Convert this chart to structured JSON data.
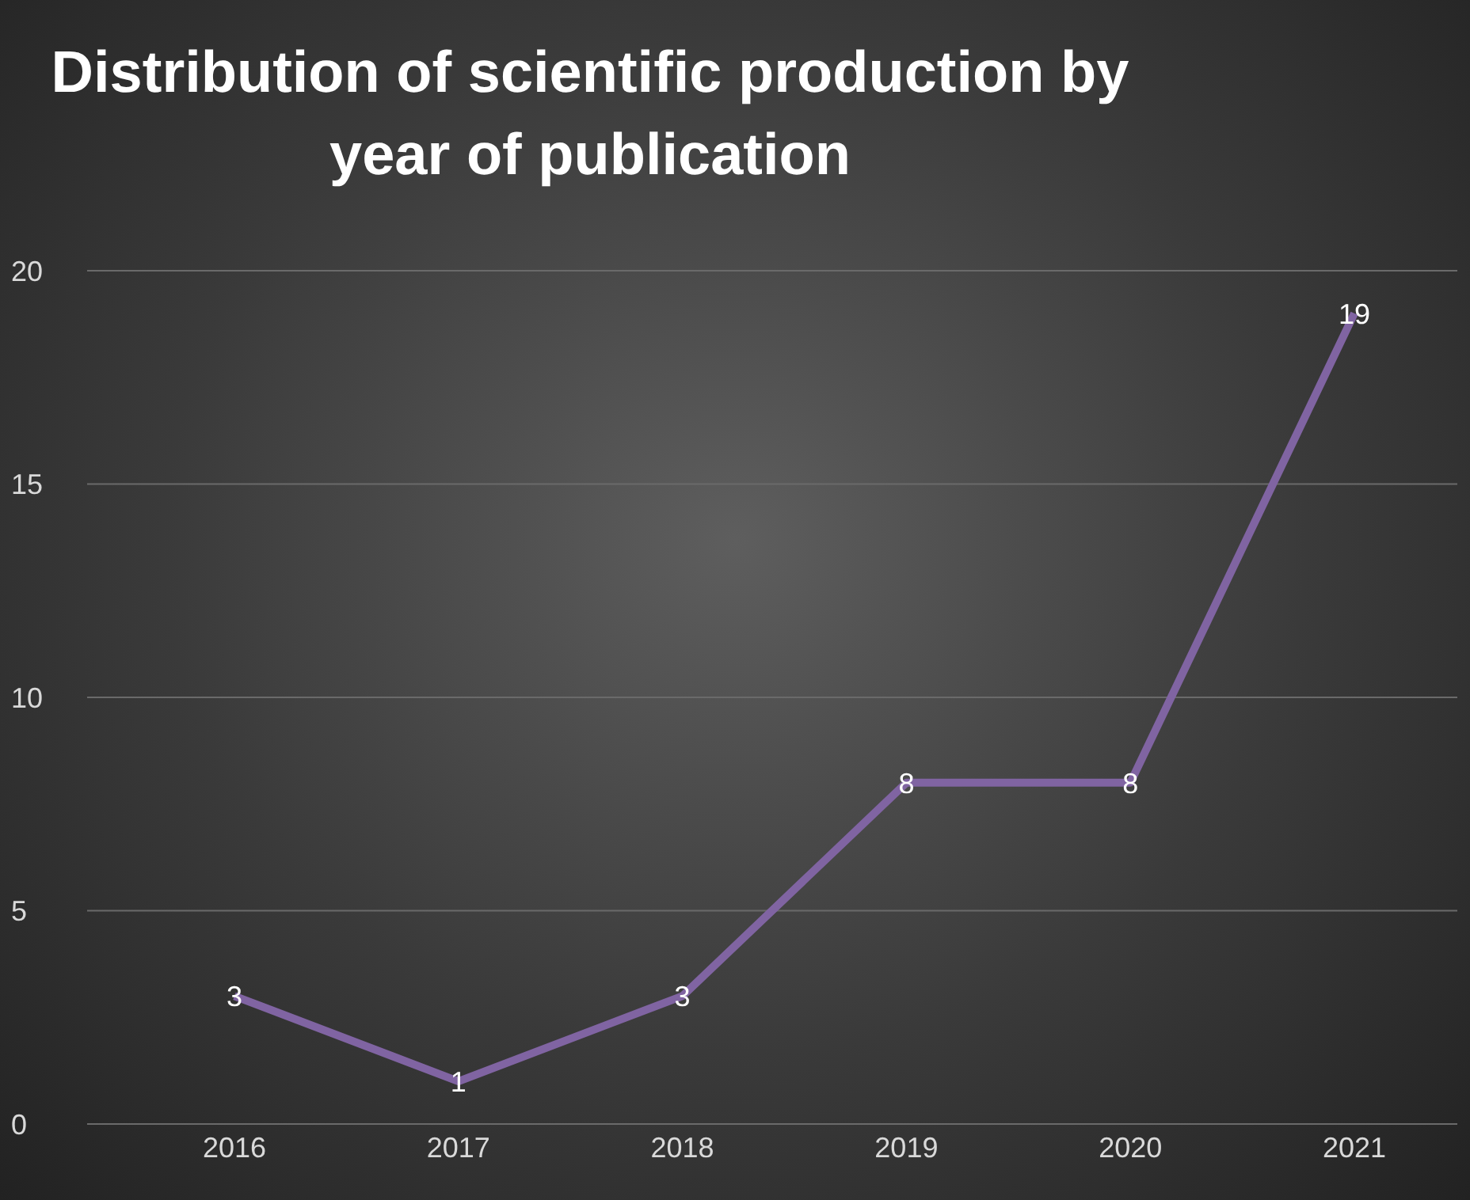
{
  "chart_data": {
    "type": "line",
    "title": "Distribution of scientific production by year of publication",
    "categories": [
      "2016",
      "2017",
      "2018",
      "2019",
      "2020",
      "2021"
    ],
    "series": [
      {
        "color": "#8064a2",
        "values": [
          3,
          1,
          3,
          8,
          8,
          19
        ]
      }
    ],
    "ylim": [
      0,
      20
    ],
    "yticks": [
      0,
      5,
      10,
      15,
      20
    ],
    "grid": "y",
    "data_labels": true,
    "legend": false,
    "marker": "none",
    "line_style": "solid"
  }
}
